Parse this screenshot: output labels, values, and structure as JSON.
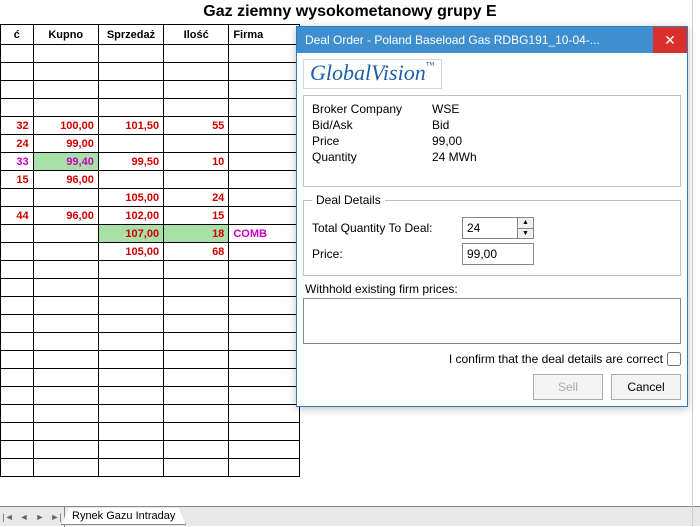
{
  "page_title": "Gaz ziemny wysokometanowy grupy E",
  "table": {
    "columns": [
      "ć",
      "Kupno",
      "Sprzedaż",
      "Ilość",
      "Firma"
    ],
    "rows": [
      {
        "id": "",
        "buy": "",
        "sell": "",
        "qty": "",
        "firm": ""
      },
      {
        "id": "",
        "buy": "",
        "sell": "",
        "qty": "",
        "firm": ""
      },
      {
        "id": "",
        "buy": "",
        "sell": "",
        "qty": "",
        "firm": ""
      },
      {
        "id": "",
        "buy": "",
        "sell": "",
        "qty": "",
        "firm": ""
      },
      {
        "id": "32",
        "buy": "100,00",
        "sell": "101,50",
        "qty": "55",
        "firm": "",
        "id_cls": "red",
        "buy_cls": "red",
        "sell_cls": "red",
        "qty_cls": "red"
      },
      {
        "id": "24",
        "buy": "99,00",
        "sell": "",
        "qty": "",
        "firm": "",
        "id_cls": "red",
        "buy_cls": "red"
      },
      {
        "id": "33",
        "buy": "99,40",
        "sell": "99,50",
        "qty": "10",
        "firm": "",
        "id_cls": "magenta",
        "buy_cls": "magenta",
        "buy_bg": "green-bg",
        "sell_cls": "red",
        "qty_cls": "red"
      },
      {
        "id": "15",
        "buy": "96,00",
        "sell": "",
        "qty": "",
        "firm": "",
        "id_cls": "red",
        "buy_cls": "red"
      },
      {
        "id": "",
        "buy": "",
        "sell": "105,00",
        "qty": "24",
        "firm": "",
        "sell_cls": "red",
        "qty_cls": "red"
      },
      {
        "id": "44",
        "buy": "96,00",
        "sell": "102,00",
        "qty": "15",
        "firm": "",
        "id_cls": "red",
        "buy_cls": "red",
        "sell_cls": "red",
        "qty_cls": "red"
      },
      {
        "id": "",
        "buy": "",
        "sell": "107,00",
        "qty": "18",
        "firm": "COMB",
        "sell_cls": "red",
        "sell_bg": "green-bg",
        "qty_cls": "red",
        "qty_bg": "green-bg",
        "firm_cls": "magenta"
      },
      {
        "id": "",
        "buy": "",
        "sell": "105,00",
        "qty": "68",
        "firm": "",
        "sell_cls": "red",
        "qty_cls": "red"
      },
      {
        "id": "",
        "buy": "",
        "sell": "",
        "qty": "",
        "firm": ""
      },
      {
        "id": "",
        "buy": "",
        "sell": "",
        "qty": "",
        "firm": ""
      },
      {
        "id": "",
        "buy": "",
        "sell": "",
        "qty": "",
        "firm": ""
      },
      {
        "id": "",
        "buy": "",
        "sell": "",
        "qty": "",
        "firm": ""
      },
      {
        "id": "",
        "buy": "",
        "sell": "",
        "qty": "",
        "firm": ""
      },
      {
        "id": "",
        "buy": "",
        "sell": "",
        "qty": "",
        "firm": ""
      },
      {
        "id": "",
        "buy": "",
        "sell": "",
        "qty": "",
        "firm": ""
      },
      {
        "id": "",
        "buy": "",
        "sell": "",
        "qty": "",
        "firm": ""
      },
      {
        "id": "",
        "buy": "",
        "sell": "",
        "qty": "",
        "firm": ""
      },
      {
        "id": "",
        "buy": "",
        "sell": "",
        "qty": "",
        "firm": ""
      },
      {
        "id": "",
        "buy": "",
        "sell": "",
        "qty": "",
        "firm": ""
      },
      {
        "id": "",
        "buy": "",
        "sell": "",
        "qty": "",
        "firm": ""
      }
    ]
  },
  "sheet_tab": "Rynek Gazu Intraday",
  "dialog": {
    "title": "Deal Order - Poland Baseload Gas RDBG191_10-04-...",
    "logo": "GlobalVision",
    "info": {
      "broker_label": "Broker Company",
      "broker_value": "WSE",
      "bidask_label": "Bid/Ask",
      "bidask_value": "Bid",
      "price_label": "Price",
      "price_value": "99,00",
      "quantity_label": "Quantity",
      "quantity_value": "24 MWh"
    },
    "deal_details_legend": "Deal Details",
    "total_qty_label": "Total Quantity To Deal:",
    "total_qty_value": "24",
    "price_field_label": "Price:",
    "price_field_value": "99,00",
    "withhold_label": "Withhold existing firm prices:",
    "confirm_label": "I confirm that the deal details are correct",
    "sell_label": "Sell",
    "cancel_label": "Cancel"
  }
}
